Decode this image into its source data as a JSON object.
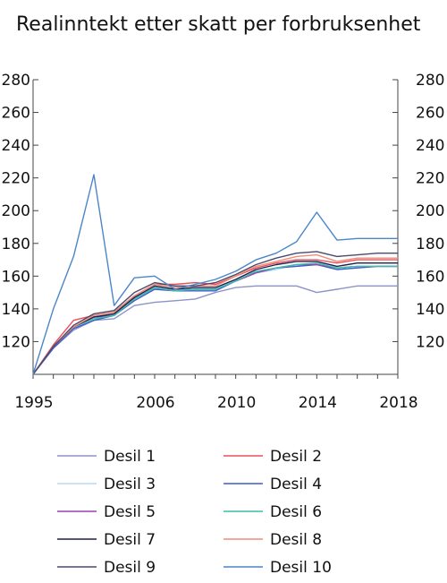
{
  "chart_data": {
    "type": "line",
    "title": "Realinntekt etter skatt per forbruksenhet",
    "xlabel": "",
    "ylabel": "",
    "x": [
      1995,
      1996,
      1997,
      1998,
      2004,
      2005,
      2006,
      2007,
      2008,
      2009,
      2010,
      2011,
      2012,
      2013,
      2014,
      2015,
      2016,
      2017,
      2018
    ],
    "x_tick_labels": [
      "1995",
      "2006",
      "2010",
      "2014",
      "2018"
    ],
    "y_ticks": [
      120,
      140,
      160,
      180,
      200,
      220,
      240,
      260,
      280
    ],
    "ylim": [
      100,
      280
    ],
    "grid": false,
    "legend_position": "bottom",
    "series": [
      {
        "name": "Desil 1",
        "color": "#8d93c9",
        "values": [
          100,
          116,
          127,
          133,
          134,
          142,
          144,
          145,
          146,
          150,
          153,
          154,
          154,
          154,
          150,
          152,
          154,
          154,
          154
        ]
      },
      {
        "name": "Desil 2",
        "color": "#e8505b",
        "values": [
          100,
          118,
          133,
          136,
          138,
          148,
          155,
          155,
          156,
          155,
          160,
          165,
          168,
          170,
          170,
          168,
          170,
          170,
          170
        ]
      },
      {
        "name": "Desil 3",
        "color": "#b9d9f4",
        "values": [
          100,
          117,
          129,
          135,
          136,
          146,
          152,
          152,
          152,
          152,
          157,
          162,
          164,
          167,
          167,
          164,
          165,
          166,
          166
        ]
      },
      {
        "name": "Desil 4",
        "color": "#3a5fc8",
        "values": [
          100,
          116,
          128,
          133,
          136,
          145,
          152,
          151,
          151,
          151,
          157,
          162,
          165,
          166,
          167,
          164,
          165,
          166,
          166
        ]
      },
      {
        "name": "Desil 5",
        "color": "#9a41b8",
        "values": [
          100,
          117,
          129,
          135,
          136,
          146,
          153,
          151,
          152,
          152,
          157,
          162,
          165,
          167,
          167,
          165,
          166,
          166,
          166
        ]
      },
      {
        "name": "Desil 6",
        "color": "#39c0a8",
        "values": [
          100,
          117,
          129,
          134,
          136,
          146,
          153,
          151,
          152,
          152,
          157,
          163,
          165,
          167,
          168,
          165,
          166,
          166,
          166
        ]
      },
      {
        "name": "Desil 7",
        "color": "#1f1f4d",
        "values": [
          100,
          117,
          129,
          135,
          137,
          147,
          154,
          152,
          153,
          153,
          158,
          164,
          167,
          169,
          169,
          166,
          168,
          168,
          168
        ]
      },
      {
        "name": "Desil 8",
        "color": "#f08c78",
        "values": [
          100,
          117,
          129,
          136,
          138,
          148,
          155,
          153,
          154,
          154,
          160,
          166,
          169,
          172,
          173,
          169,
          171,
          171,
          171
        ]
      },
      {
        "name": "Desil 9",
        "color": "#4a4a6e",
        "values": [
          100,
          117,
          130,
          137,
          139,
          150,
          156,
          154,
          154,
          156,
          161,
          167,
          171,
          174,
          175,
          172,
          173,
          174,
          174
        ]
      },
      {
        "name": "Desil 10",
        "color": "#4a86c8",
        "values": [
          100,
          140,
          172,
          222,
          142,
          159,
          160,
          152,
          155,
          158,
          163,
          170,
          174,
          181,
          199,
          182,
          183,
          183,
          183
        ]
      }
    ]
  }
}
